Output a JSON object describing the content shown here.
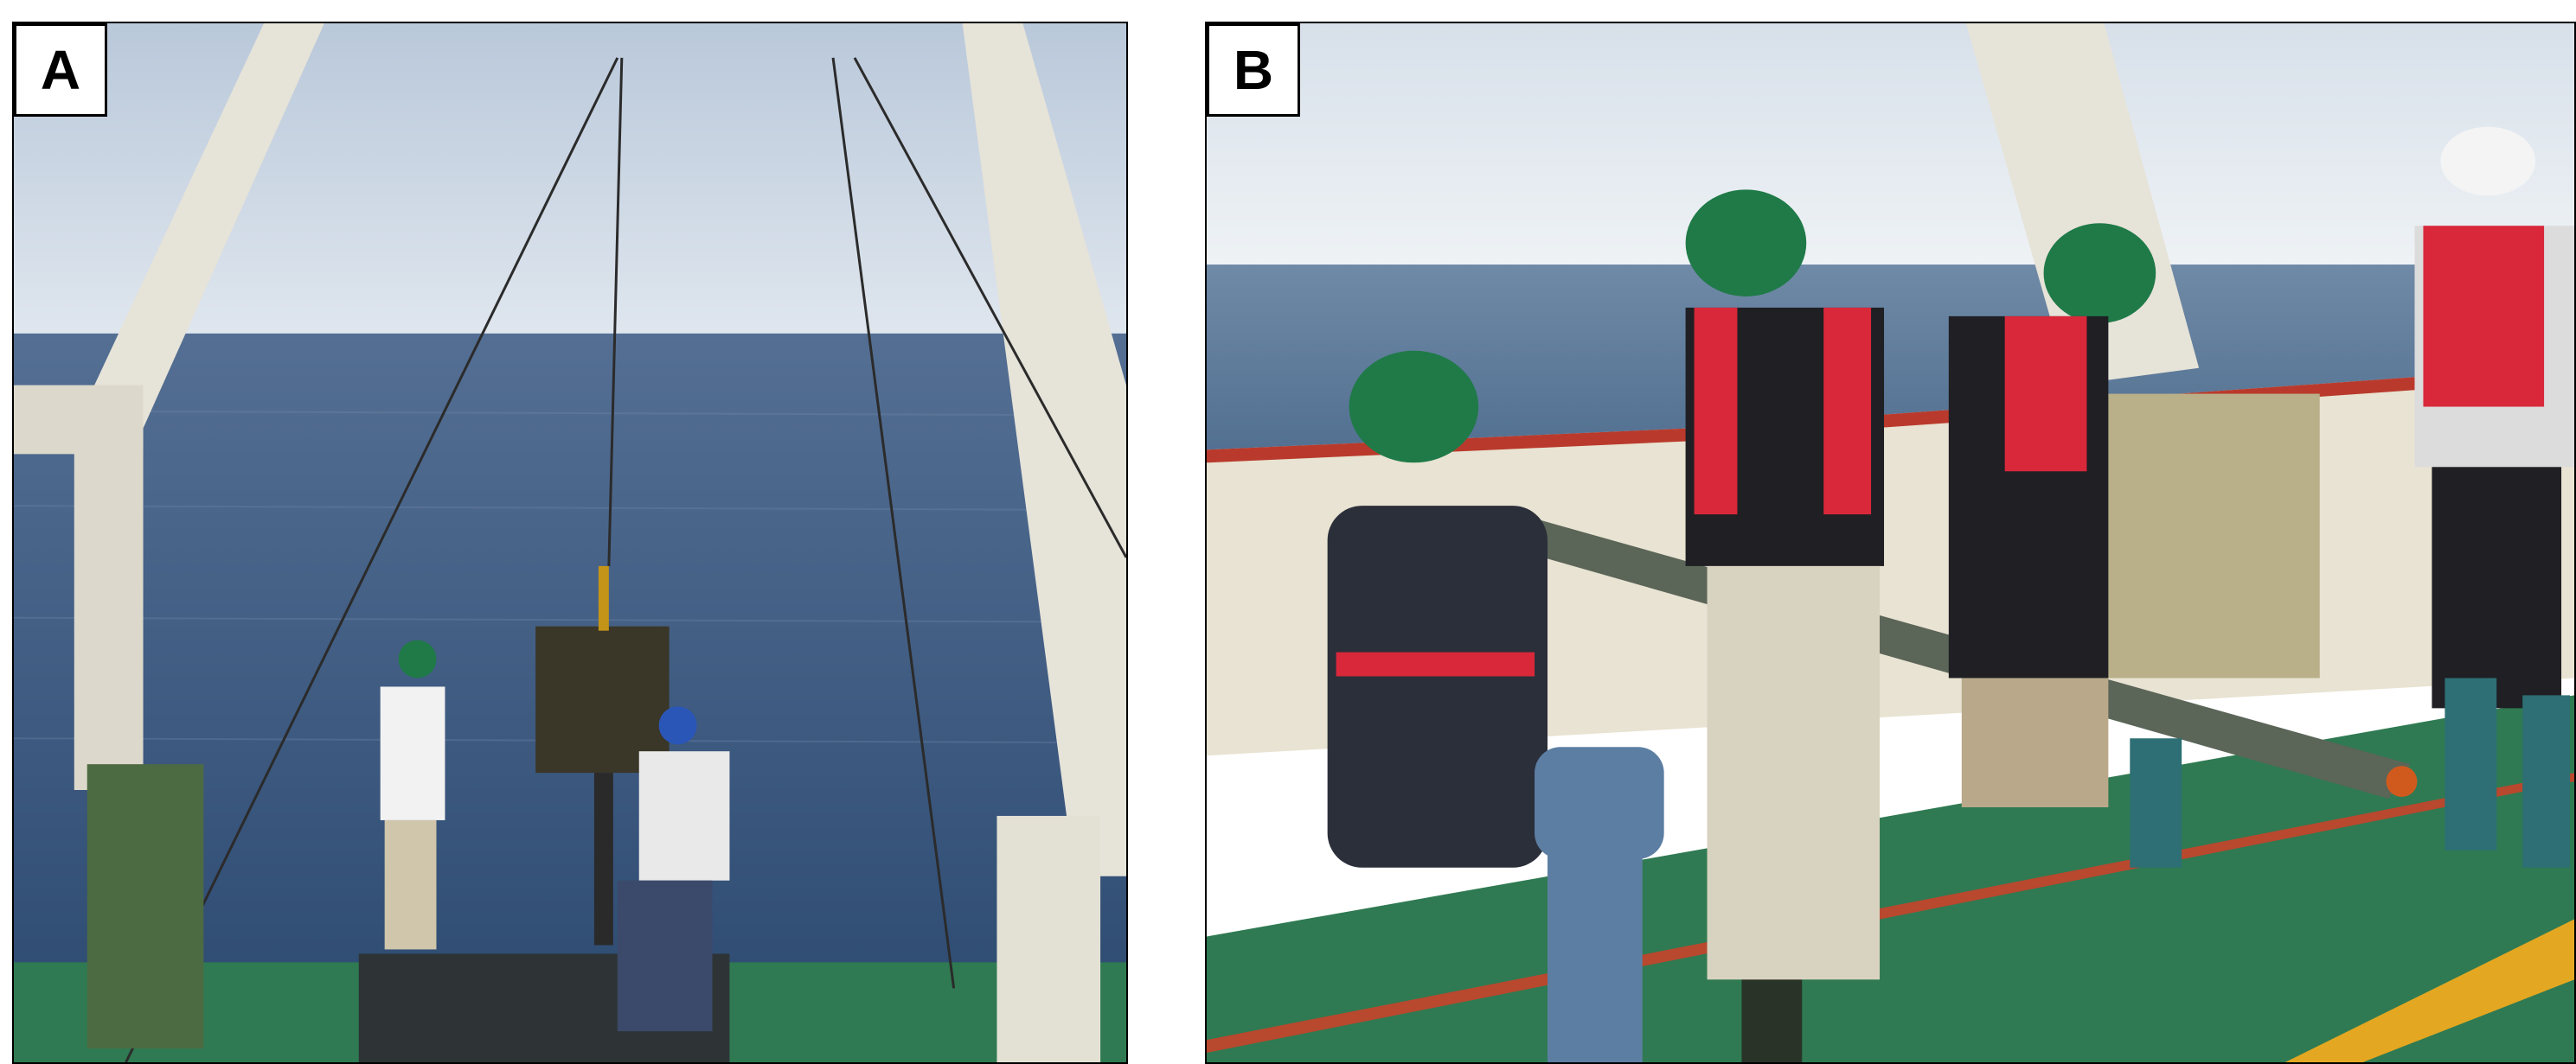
{
  "panels": [
    {
      "label": "A"
    },
    {
      "label": "B"
    }
  ],
  "colors": {
    "sky": "#c9d6e4",
    "sea": "#3d5d86",
    "deck": "#2f7a52",
    "frame": "#e6e3d8",
    "helmet_green": "#1f7a48",
    "helmet_blue": "#2a56b8",
    "life_vest": "#d8283a",
    "core_tube": "#5b6558"
  }
}
